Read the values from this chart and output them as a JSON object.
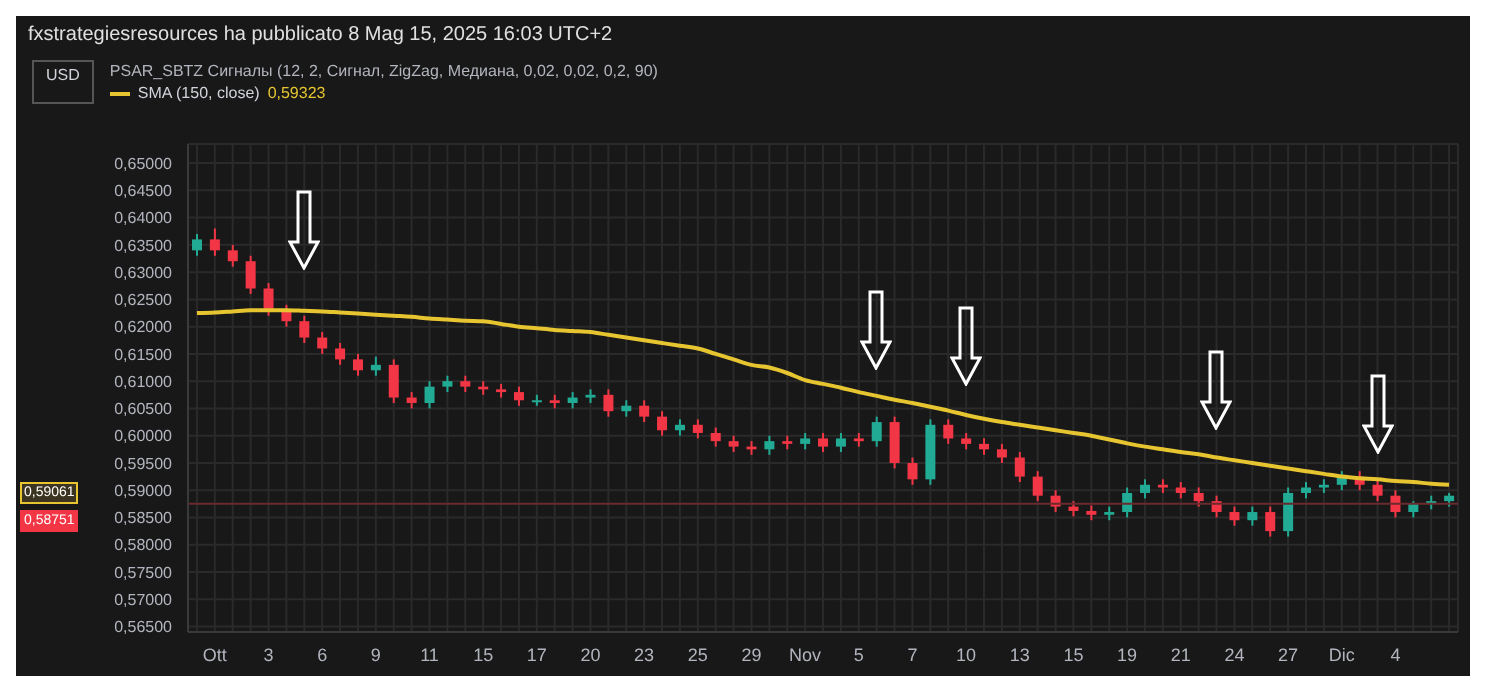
{
  "chart_data": {
    "type": "candlestick",
    "title": "fxstrategiesresources ha pubblicato 8 Mag 15, 2025 16:03 UTC+2",
    "categories": [
      null,
      "Ott",
      null,
      null,
      "3",
      null,
      null,
      "6",
      null,
      null,
      "9",
      null,
      null,
      "11",
      null,
      null,
      "15",
      null,
      null,
      "17",
      null,
      null,
      "20",
      null,
      null,
      "23",
      null,
      null,
      "25",
      null,
      null,
      "29",
      null,
      null,
      "Nov",
      null,
      null,
      "5",
      null,
      null,
      "7",
      null,
      null,
      "10",
      null,
      null,
      "13",
      null,
      null,
      "15",
      null,
      null,
      "19",
      null,
      null,
      "21",
      null,
      null,
      "24",
      null,
      null,
      "27",
      null,
      null,
      "Dic",
      null,
      null,
      "4",
      null,
      null,
      null
    ],
    "ohlc": [
      [
        0.634,
        0.637,
        0.633,
        0.636
      ],
      [
        0.636,
        0.638,
        0.633,
        0.634
      ],
      [
        0.634,
        0.635,
        0.631,
        0.632
      ],
      [
        0.632,
        0.633,
        0.626,
        0.627
      ],
      [
        0.627,
        0.628,
        0.622,
        0.623
      ],
      [
        0.623,
        0.624,
        0.62,
        0.621
      ],
      [
        0.621,
        0.622,
        0.617,
        0.618
      ],
      [
        0.618,
        0.619,
        0.615,
        0.616
      ],
      [
        0.616,
        0.617,
        0.613,
        0.614
      ],
      [
        0.614,
        0.615,
        0.611,
        0.612
      ],
      [
        0.612,
        0.6145,
        0.611,
        0.613
      ],
      [
        0.613,
        0.614,
        0.606,
        0.607
      ],
      [
        0.607,
        0.608,
        0.605,
        0.606
      ],
      [
        0.606,
        0.61,
        0.605,
        0.609
      ],
      [
        0.609,
        0.611,
        0.608,
        0.61
      ],
      [
        0.61,
        0.611,
        0.608,
        0.609
      ],
      [
        0.609,
        0.61,
        0.6075,
        0.6085
      ],
      [
        0.6085,
        0.6095,
        0.607,
        0.608
      ],
      [
        0.608,
        0.609,
        0.6055,
        0.6065
      ],
      [
        0.6065,
        0.6075,
        0.6055,
        0.6065
      ],
      [
        0.6065,
        0.6075,
        0.605,
        0.606
      ],
      [
        0.606,
        0.608,
        0.605,
        0.607
      ],
      [
        0.607,
        0.6085,
        0.606,
        0.6075
      ],
      [
        0.6075,
        0.6085,
        0.6035,
        0.6045
      ],
      [
        0.6045,
        0.6065,
        0.6035,
        0.6055
      ],
      [
        0.6055,
        0.6065,
        0.6025,
        0.6035
      ],
      [
        0.6035,
        0.6045,
        0.6,
        0.601
      ],
      [
        0.601,
        0.603,
        0.6,
        0.602
      ],
      [
        0.602,
        0.603,
        0.5995,
        0.6005
      ],
      [
        0.6005,
        0.6015,
        0.598,
        0.599
      ],
      [
        0.599,
        0.6,
        0.597,
        0.598
      ],
      [
        0.598,
        0.599,
        0.5965,
        0.5975
      ],
      [
        0.5975,
        0.6,
        0.5965,
        0.599
      ],
      [
        0.599,
        0.6,
        0.5975,
        0.5985
      ],
      [
        0.5985,
        0.6005,
        0.5975,
        0.5995
      ],
      [
        0.5995,
        0.6005,
        0.597,
        0.598
      ],
      [
        0.598,
        0.6005,
        0.597,
        0.5995
      ],
      [
        0.5995,
        0.6005,
        0.598,
        0.599
      ],
      [
        0.599,
        0.6035,
        0.598,
        0.6025
      ],
      [
        0.6025,
        0.6035,
        0.594,
        0.595
      ],
      [
        0.595,
        0.596,
        0.591,
        0.592
      ],
      [
        0.592,
        0.603,
        0.591,
        0.602
      ],
      [
        0.602,
        0.603,
        0.5985,
        0.5995
      ],
      [
        0.5995,
        0.6005,
        0.5975,
        0.5985
      ],
      [
        0.5985,
        0.5995,
        0.5965,
        0.5975
      ],
      [
        0.5975,
        0.5985,
        0.595,
        0.596
      ],
      [
        0.596,
        0.597,
        0.5915,
        0.5925
      ],
      [
        0.5925,
        0.5935,
        0.588,
        0.589
      ],
      [
        0.589,
        0.59,
        0.586,
        0.587
      ],
      [
        0.587,
        0.588,
        0.5852,
        0.5862
      ],
      [
        0.5862,
        0.5872,
        0.5845,
        0.5855
      ],
      [
        0.5855,
        0.587,
        0.5845,
        0.586
      ],
      [
        0.586,
        0.5905,
        0.585,
        0.5895
      ],
      [
        0.5895,
        0.592,
        0.5885,
        0.591
      ],
      [
        0.591,
        0.592,
        0.5895,
        0.5905
      ],
      [
        0.5905,
        0.5915,
        0.5885,
        0.5895
      ],
      [
        0.5895,
        0.5905,
        0.587,
        0.588
      ],
      [
        0.588,
        0.589,
        0.585,
        0.586
      ],
      [
        0.586,
        0.587,
        0.5835,
        0.5845
      ],
      [
        0.5845,
        0.587,
        0.5835,
        0.586
      ],
      [
        0.586,
        0.587,
        0.5815,
        0.5825
      ],
      [
        0.5825,
        0.5905,
        0.5815,
        0.5895
      ],
      [
        0.5895,
        0.5915,
        0.5885,
        0.5905
      ],
      [
        0.5905,
        0.592,
        0.5895,
        0.591
      ],
      [
        0.591,
        0.5935,
        0.59,
        0.5925
      ],
      [
        0.5925,
        0.5935,
        0.59,
        0.591
      ],
      [
        0.591,
        0.592,
        0.588,
        0.589
      ],
      [
        0.589,
        0.59,
        0.585,
        0.586
      ],
      [
        0.586,
        0.588,
        0.585,
        0.5875
      ],
      [
        0.5875,
        0.589,
        0.5865,
        0.588
      ],
      [
        0.588,
        0.5895,
        0.587,
        0.589
      ]
    ],
    "series": [
      {
        "name": "SMA (150, close)",
        "type": "line",
        "color": "#e6c531",
        "values": [
          0.6225,
          0.6226,
          0.6228,
          0.623,
          0.623,
          0.623,
          0.6229,
          0.6228,
          0.6226,
          0.6224,
          0.6222,
          0.622,
          0.6218,
          0.6215,
          0.6213,
          0.6211,
          0.621,
          0.6205,
          0.62,
          0.6197,
          0.6194,
          0.6192,
          0.619,
          0.6185,
          0.618,
          0.6175,
          0.617,
          0.6165,
          0.616,
          0.615,
          0.614,
          0.613,
          0.6125,
          0.6115,
          0.6102,
          0.6095,
          0.6088,
          0.608,
          0.6073,
          0.6066,
          0.606,
          0.6053,
          0.6046,
          0.6038,
          0.6031,
          0.6025,
          0.602,
          0.6015,
          0.601,
          0.6005,
          0.6,
          0.5993,
          0.5986,
          0.598,
          0.5975,
          0.597,
          0.5966,
          0.596,
          0.5955,
          0.595,
          0.5945,
          0.594,
          0.5935,
          0.593,
          0.5925,
          0.5922,
          0.592,
          0.5917,
          0.5915,
          0.5912,
          0.591
        ]
      }
    ],
    "ylim": [
      0.564,
      0.6535
    ],
    "yticks": [
      {
        "value": 0.565,
        "label": "0,56500"
      },
      {
        "value": 0.57,
        "label": "0,57000"
      },
      {
        "value": 0.575,
        "label": "0,57500"
      },
      {
        "value": 0.58,
        "label": "0,58000"
      },
      {
        "value": 0.585,
        "label": "0,58500"
      },
      {
        "value": 0.59,
        "label": "0,59000"
      },
      {
        "value": 0.595,
        "label": "0,59500"
      },
      {
        "value": 0.6,
        "label": "0,60000"
      },
      {
        "value": 0.605,
        "label": "0,60500"
      },
      {
        "value": 0.61,
        "label": "0,61000"
      },
      {
        "value": 0.615,
        "label": "0,61500"
      },
      {
        "value": 0.62,
        "label": "0,62000"
      },
      {
        "value": 0.625,
        "label": "0,62500"
      },
      {
        "value": 0.63,
        "label": "0,63000"
      },
      {
        "value": 0.635,
        "label": "0,63500"
      },
      {
        "value": 0.64,
        "label": "0,64000"
      },
      {
        "value": 0.645,
        "label": "0,64500"
      },
      {
        "value": 0.65,
        "label": "0,65000"
      }
    ],
    "ref_lines": [
      {
        "axis": "y",
        "value": 0.5875,
        "color": "#6b2a2e"
      }
    ],
    "annotations": [
      "USD",
      "PSAR_SBTZ Сигналы (12, 2, Сигнал, ZigZag, Медиана, 0,02, 0,02, 0,2, 90)",
      "0,59323",
      "0,59061",
      "0,58751"
    ],
    "grid": true,
    "legend": "top left"
  }
}
